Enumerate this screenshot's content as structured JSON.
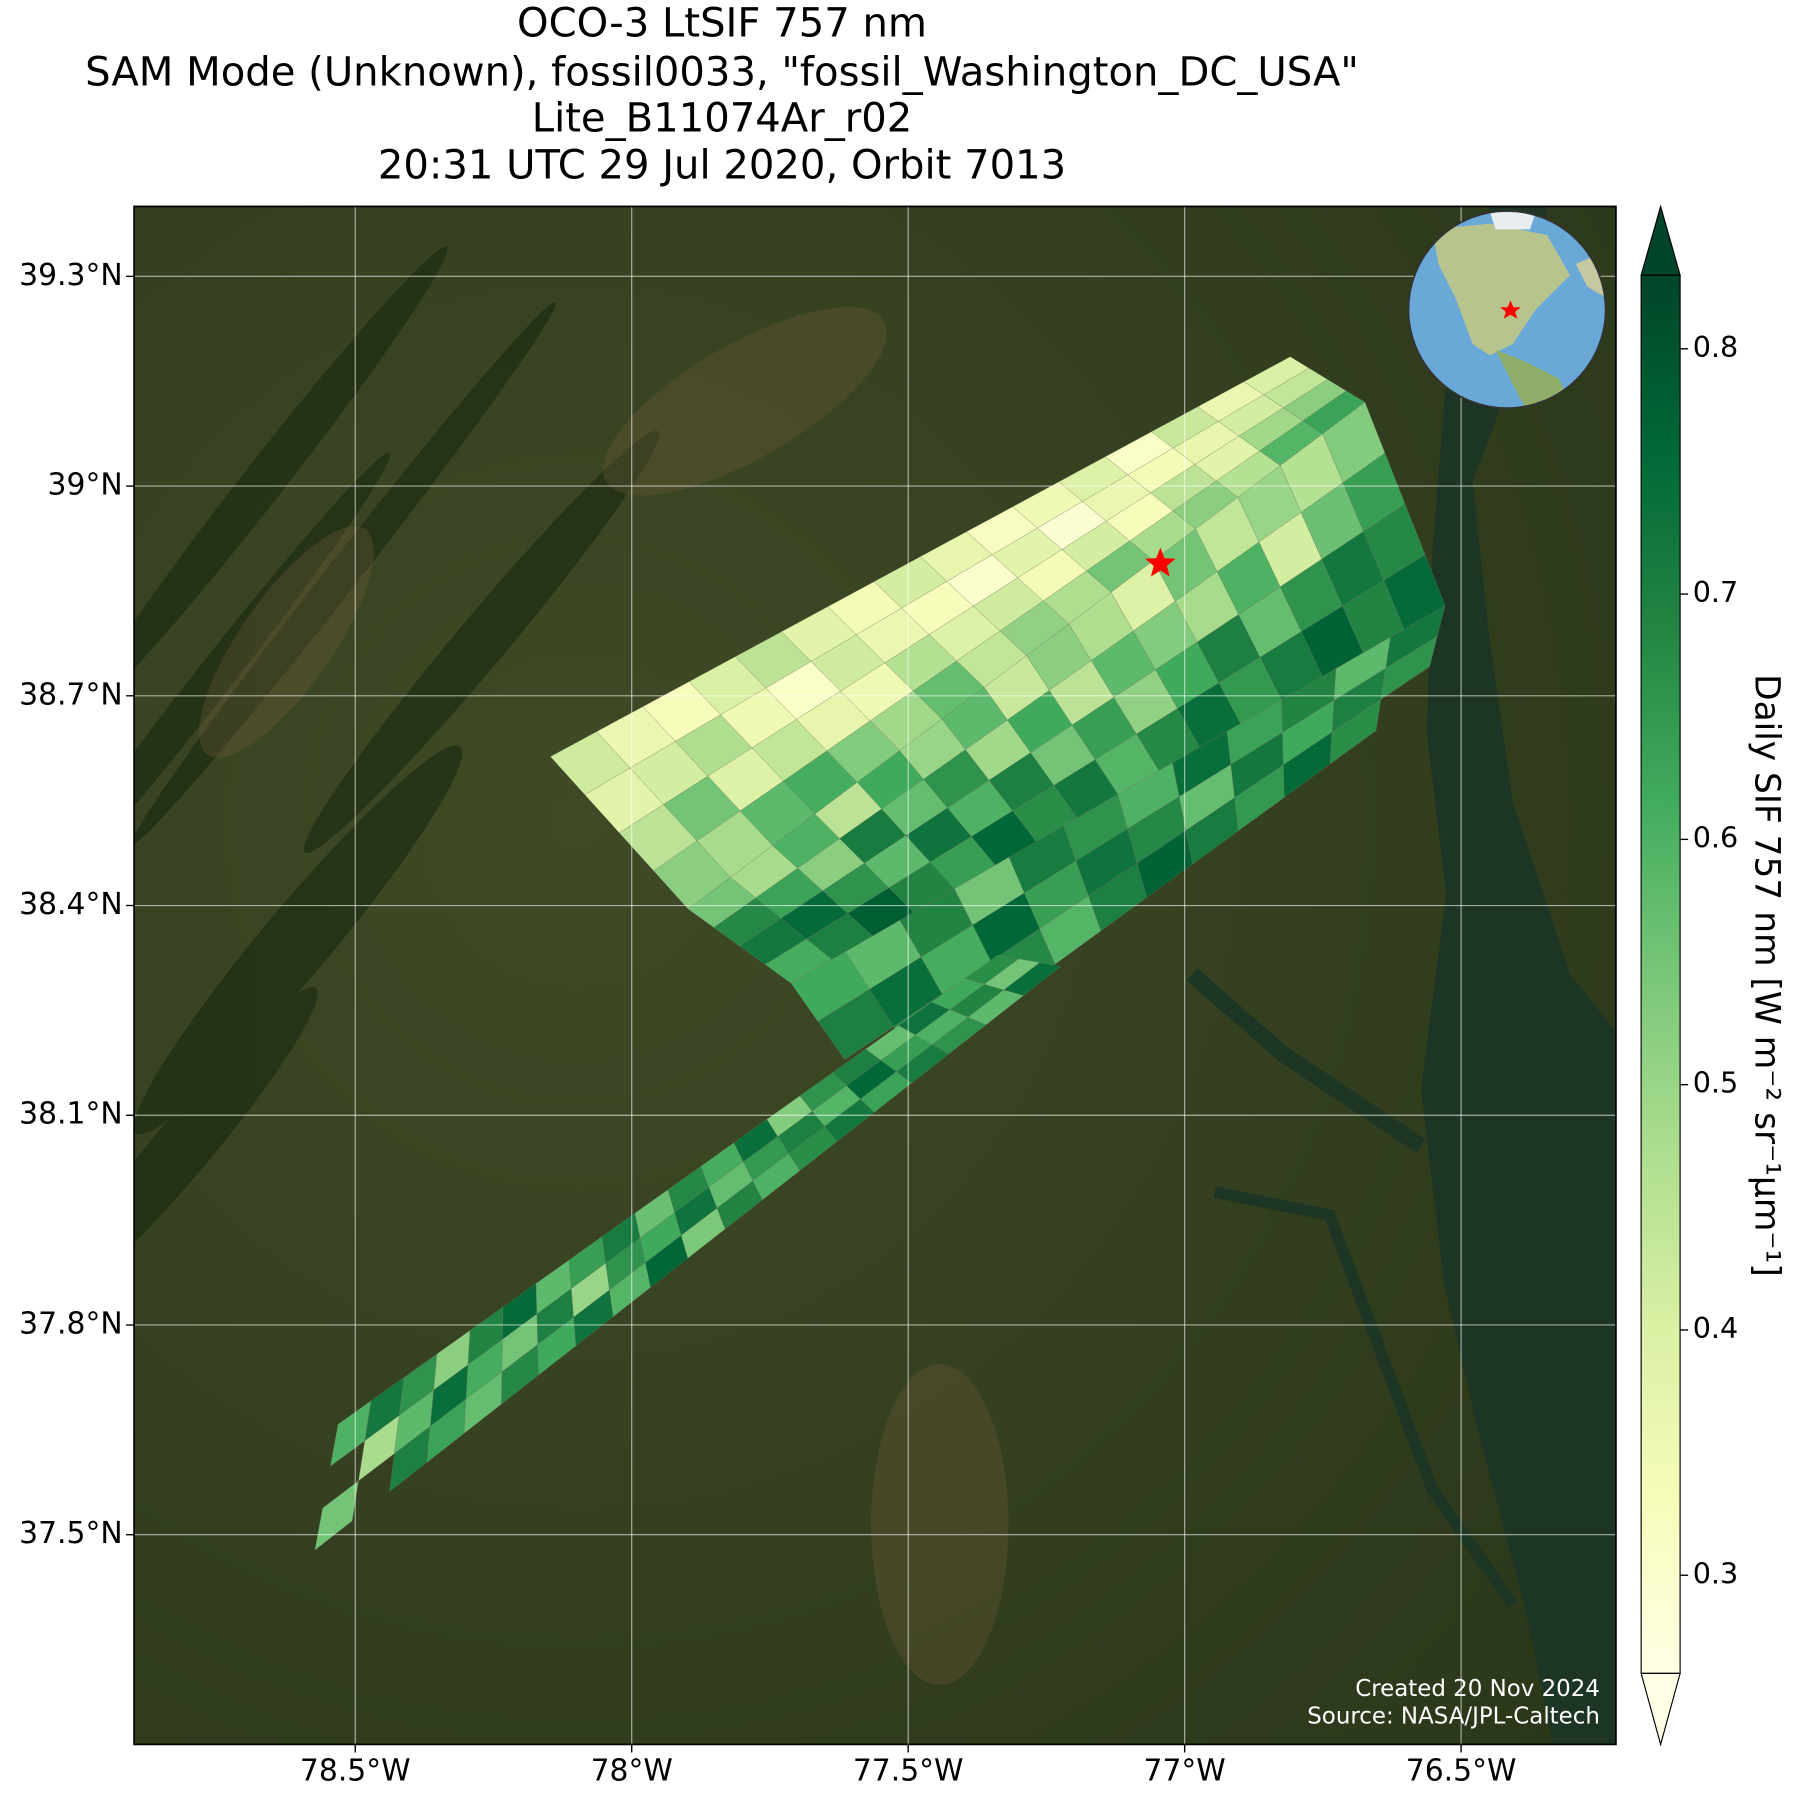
{
  "chart_data": {
    "type": "map",
    "title": "OCO-3 LtSIF 757 nm",
    "subtitle": "SAM Mode (Unknown), fossil0033, \"fossil_Washington_DC_USA\"",
    "product": "Lite_B11074Ar_r02",
    "time": "20:31 UTC 29 Jul 2020, Orbit 7013",
    "xlim": [
      -78.9,
      -76.22
    ],
    "ylim": [
      37.2,
      39.4
    ],
    "xticks": [
      {
        "value": -78.5,
        "label": "78.5°W"
      },
      {
        "value": -78,
        "label": "78°W"
      },
      {
        "value": -77.5,
        "label": "77.5°W"
      },
      {
        "value": -77,
        "label": "77°W"
      },
      {
        "value": -76.5,
        "label": "76.5°W"
      }
    ],
    "yticks": [
      {
        "value": 37.5,
        "label": "37.5°N"
      },
      {
        "value": 37.8,
        "label": "37.8°N"
      },
      {
        "value": 38.1,
        "label": "38.1°N"
      },
      {
        "value": 38.4,
        "label": "38.4°N"
      },
      {
        "value": 38.7,
        "label": "38.7°N"
      },
      {
        "value": 39,
        "label": "39°N"
      },
      {
        "value": 39.3,
        "label": "39.3°N"
      }
    ],
    "grid": true,
    "cmap": "YlGn",
    "colorbar": {
      "label": "Daily SIF 757 nm [W m⁻² sr⁻¹μm⁻¹]",
      "vlim": [
        0.26,
        0.83
      ],
      "ticks": [
        0.3,
        0.4,
        0.5,
        0.6,
        0.7,
        0.8
      ],
      "extend": "both"
    },
    "target": {
      "lon": -77.044,
      "lat": 38.889,
      "color": "#ff0000"
    },
    "swaths": [
      {
        "corners": [
          [
            -78.147,
            38.613
          ],
          [
            -76.809,
            39.185
          ],
          [
            -76.674,
            39.12
          ],
          [
            -77.898,
            38.395
          ]
        ],
        "values": [
          [
            0.42,
            0.38,
            0.45,
            0.52
          ],
          [
            0.36,
            0.41,
            0.55,
            0.48
          ],
          [
            0.33,
            0.47,
            0.39,
            0.58
          ],
          [
            0.4,
            0.35,
            0.44,
            0.61
          ],
          [
            0.45,
            0.31,
            0.37,
            0.53
          ],
          [
            0.38,
            0.42,
            0.35,
            0.49
          ],
          [
            0.34,
            0.36,
            0.46,
            0.57
          ],
          [
            0.41,
            0.33,
            0.39,
            0.44
          ],
          [
            0.37,
            0.3,
            0.42,
            0.51
          ],
          [
            0.32,
            0.38,
            0.34,
            0.47
          ],
          [
            0.35,
            0.29,
            0.41,
            0.55
          ],
          [
            0.39,
            0.36,
            0.33,
            0.48
          ],
          [
            0.31,
            0.34,
            0.45,
            0.52
          ],
          [
            0.43,
            0.37,
            0.38,
            0.46
          ],
          [
            0.36,
            0.41,
            0.49,
            0.59
          ],
          [
            0.4,
            0.44,
            0.52,
            0.63
          ]
        ]
      },
      {
        "corners": [
          [
            -77.898,
            38.395
          ],
          [
            -76.674,
            39.12
          ],
          [
            -76.529,
            38.829
          ],
          [
            -77.712,
            38.289
          ]
        ],
        "values": [
          [
            0.55,
            0.68,
            0.72,
            0.61
          ],
          [
            0.48,
            0.63,
            0.75,
            0.7
          ],
          [
            0.6,
            0.52,
            0.66,
            0.78
          ],
          [
            0.45,
            0.71,
            0.58,
            0.69
          ],
          [
            0.62,
            0.57,
            0.73,
            0.64
          ],
          [
            0.5,
            0.66,
            0.6,
            0.76
          ],
          [
            0.58,
            0.49,
            0.7,
            0.67
          ],
          [
            0.43,
            0.62,
            0.55,
            0.72
          ],
          [
            0.52,
            0.45,
            0.64,
            0.59
          ],
          [
            0.47,
            0.58,
            0.51,
            0.68
          ],
          [
            0.39,
            0.53,
            0.62,
            0.74
          ],
          [
            0.55,
            0.48,
            0.7,
            0.65
          ],
          [
            0.44,
            0.6,
            0.57,
            0.71
          ],
          [
            0.5,
            0.41,
            0.66,
            0.77
          ],
          [
            0.46,
            0.56,
            0.72,
            0.69
          ],
          [
            0.53,
            0.64,
            0.68,
            0.75
          ]
        ]
      },
      {
        "corners": [
          [
            -77.712,
            38.289
          ],
          [
            -76.529,
            38.829
          ],
          [
            -76.571,
            38.698
          ],
          [
            -77.566,
            38.125
          ]
        ],
        "values": [
          [
            0.62,
            0.7,
            null
          ],
          [
            0.58,
            0.74,
            0.66
          ],
          [
            0.69,
            0.61,
            0.72
          ],
          [
            0.55,
            0.76,
            0.68
          ],
          [
            0.71,
            0.64,
            0.59
          ],
          [
            0.66,
            0.73,
            0.7
          ],
          [
            0.6,
            0.68,
            0.77
          ],
          [
            0.74,
            0.57,
            0.71
          ],
          [
            0.63,
            0.72,
            0.65
          ],
          [
            0.69,
            0.62,
            0.75
          ],
          [
            0.58,
            0.7,
            0.67
          ],
          [
            0.72,
            0.66,
            null
          ]
        ]
      },
      {
        "corners": [
          [
            -78.531,
            37.658
          ],
          [
            -77.338,
            38.329
          ],
          [
            -77.224,
            38.313
          ],
          [
            -78.573,
            37.478
          ]
        ],
        "values": [
          [
            0.6,
            null,
            0.55
          ],
          [
            0.72,
            0.48,
            null
          ],
          [
            0.66,
            0.58,
            0.7
          ],
          [
            0.52,
            0.74,
            0.63
          ],
          [
            0.69,
            0.61,
            0.57
          ],
          [
            0.75,
            0.55,
            0.68
          ],
          [
            0.58,
            0.7,
            0.62
          ],
          [
            0.64,
            0.5,
            0.73
          ],
          [
            0.71,
            0.66,
            0.59
          ],
          [
            0.56,
            0.62,
            0.76
          ],
          [
            0.68,
            0.73,
            0.54
          ],
          [
            0.61,
            0.57,
            0.69
          ],
          [
            0.74,
            0.65,
            0.6
          ],
          [
            0.53,
            0.7,
            0.67
          ],
          [
            0.66,
            0.59,
            0.72
          ],
          [
            0.7,
            0.76,
            0.63
          ],
          [
            0.57,
            0.64,
            0.71
          ],
          [
            0.73,
            0.6,
            0.66
          ],
          [
            0.62,
            0.69,
            0.58
          ],
          [
            0.67,
            0.55,
            0.74
          ]
        ]
      }
    ],
    "credits": [
      "Created 20 Nov 2024",
      "Source: NASA/JPL-Caltech"
    ]
  }
}
